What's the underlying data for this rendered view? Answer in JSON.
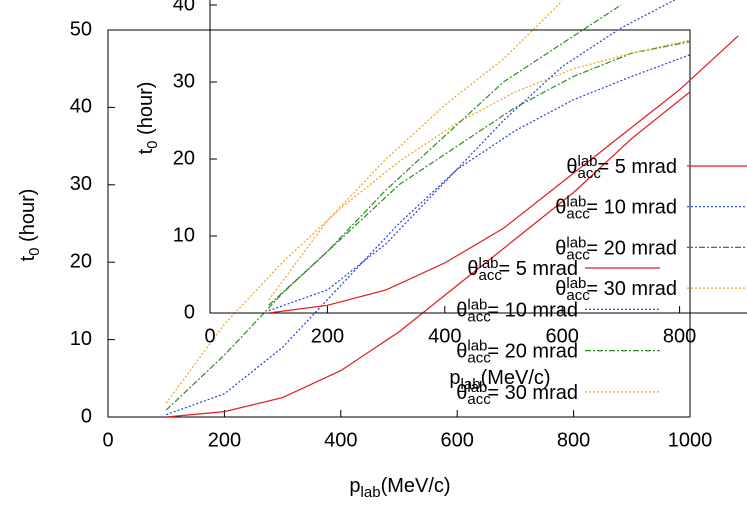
{
  "chart_data": [
    {
      "type": "line",
      "x_label": "p_{lab}(MeV/c)",
      "y_label": "t_0 (hour)",
      "x": [
        100,
        200,
        300,
        400,
        500,
        600,
        700,
        800,
        900,
        1000
      ],
      "xlim": [
        0,
        1000
      ],
      "xticks": [
        0,
        200,
        400,
        600,
        800,
        1000
      ],
      "ylim": [
        0,
        50
      ],
      "yticks": [
        0,
        10,
        20,
        30,
        40,
        50
      ],
      "legend": "bottom-right",
      "series": [
        {
          "name": "θ_{acc}^{lab}= 5 mrad",
          "color": "#e41a1c",
          "style": "solid",
          "values": [
            0,
            0.7,
            2.5,
            6,
            11,
            17,
            23,
            29,
            36,
            42
          ]
        },
        {
          "name": "θ_{acc}^{lab}= 10 mrad",
          "color": "#1f3fe0",
          "style": "dotted",
          "values": [
            0.3,
            3,
            9,
            17,
            25,
            32,
            37,
            41,
            44,
            46.8
          ]
        },
        {
          "name": "θ_{acc}^{lab}= 20 mrad",
          "color": "#2e8b22",
          "style": "dash-dot",
          "values": [
            0.9,
            8,
            16,
            23,
            30,
            35,
            40,
            44,
            47,
            48.5
          ]
        },
        {
          "name": "θ_{acc}^{lab}= 30 mrad",
          "color": "#f0a020",
          "style": "dotted",
          "values": [
            1.8,
            12,
            20,
            27,
            33,
            38,
            42,
            45,
            47,
            48.7
          ]
        }
      ]
    },
    {
      "type": "line",
      "x_label": "p_{lab}(MeV/c)",
      "y_label": "t_0 (hour)",
      "x": [
        100,
        200,
        300,
        400,
        500,
        600,
        700,
        800,
        900
      ],
      "xlim": [
        0,
        1000
      ],
      "xticks": [
        0,
        200,
        400,
        600,
        800
      ],
      "ylim": [
        0,
        50
      ],
      "yticks": [
        0,
        10,
        20,
        30,
        40
      ],
      "legend": "right",
      "series": [
        {
          "name": "θ_{acc}^{lab}= 5 mrad",
          "color": "#e41a1c",
          "style": "solid",
          "values": [
            0,
            1,
            3,
            6.5,
            11,
            17,
            23,
            29,
            36
          ]
        },
        {
          "name": "θ_{acc}^{lab}= 10 mrad",
          "color": "#1f3fe0",
          "style": "dotted",
          "values": [
            0.3,
            3,
            9,
            17,
            25,
            32,
            37,
            41,
            null
          ]
        },
        {
          "name": "θ_{acc}^{lab}= 20 mrad",
          "color": "#2e8b22",
          "style": "dash-dot",
          "values": [
            1,
            8,
            16,
            23,
            30,
            35,
            40,
            null,
            null
          ]
        },
        {
          "name": "θ_{acc}^{lab}= 30 mrad",
          "color": "#f0a020",
          "style": "dotted",
          "values": [
            1.7,
            12,
            20,
            27,
            33,
            40.5,
            null,
            null,
            null
          ]
        }
      ]
    }
  ]
}
